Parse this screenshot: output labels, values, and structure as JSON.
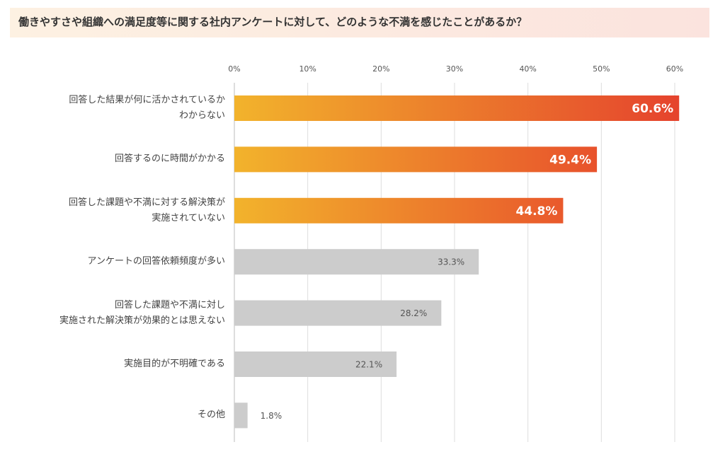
{
  "chart_data": {
    "type": "hbar",
    "title": "働きやすさや組織への満足度等に関する社内アンケートに対して、どのような不満を感じたことがあるか？",
    "categories": [
      "回答した結果が何に活かされているか\nわからない",
      "回答するのに時間がかかる",
      "回答した課題や不満に対する解決策が\n実施されていない",
      "アンケートの回答依頼頻度が多い",
      "回答した課題や不満に対し\n実施された解決策が効果的とは思えない",
      "実施目的が不明確である",
      "その他"
    ],
    "values": [
      60.6,
      49.4,
      44.8,
      33.3,
      28.2,
      22.1,
      1.8
    ],
    "value_labels": [
      "60.6%",
      "49.4%",
      "44.8%",
      "33.3%",
      "28.2%",
      "22.1%",
      "1.8%"
    ],
    "colors": [
      [
        "#f2b32c",
        "#e5432d"
      ],
      [
        "#f2b32c",
        "#e8522c"
      ],
      [
        "#f2b32c",
        "#e9592c"
      ],
      "#cccccc",
      "#cccccc",
      "#cccccc",
      "#cccccc"
    ],
    "xlim": [
      0,
      60
    ],
    "xticks": [
      {
        "value": 0,
        "label": "0%"
      },
      {
        "value": 10,
        "label": "10%"
      },
      {
        "value": 20,
        "label": "20%"
      },
      {
        "value": 30,
        "label": "30%"
      },
      {
        "value": 40,
        "label": "40%"
      },
      {
        "value": 50,
        "label": "50%"
      },
      {
        "value": 60,
        "label": "60%"
      }
    ],
    "grid": true
  }
}
